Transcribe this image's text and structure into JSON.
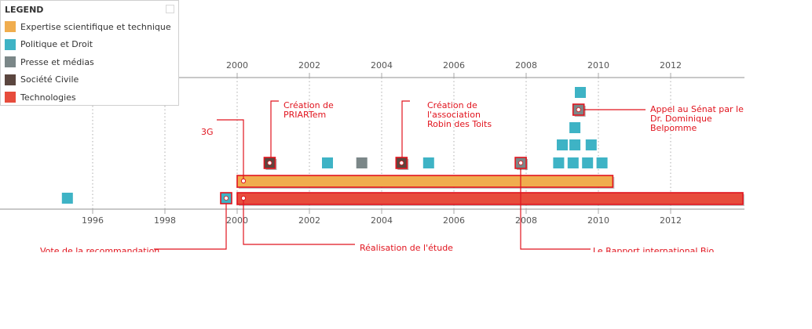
{
  "legend": {
    "title": "LEGEND",
    "items": [
      {
        "label": "Expertise scientifique et technique",
        "color": "#f0ad4e"
      },
      {
        "label": "Politique et Droit",
        "color": "#3eb3c5"
      },
      {
        "label": "Presse et médias",
        "color": "#7b8788"
      },
      {
        "label": "Société Civile",
        "color": "#5b463f"
      },
      {
        "label": "Technologies",
        "color": "#e74c3c"
      }
    ]
  },
  "colors": {
    "accent": "#e1141e",
    "axis": "#a8a8a8",
    "tick_text": "#555555",
    "expertise": "#f0ad4e",
    "politique": "#3eb3c5",
    "presse": "#7b8788",
    "societe": "#5b463f",
    "technologies": "#e74c3c"
  },
  "axes": {
    "top_ticks": [
      "2000",
      "2002",
      "2004",
      "2006",
      "2008",
      "2010",
      "2012"
    ],
    "bottom_ticks": [
      "1996",
      "1998",
      "2000",
      "2002",
      "2004",
      "2006",
      "2008",
      "2010",
      "2012"
    ],
    "range": [
      1994.15,
      2014.0
    ]
  },
  "bars": [
    {
      "category": "expertise",
      "start": 2000.0,
      "end": 2010.4
    },
    {
      "category": "technologies",
      "start": 2000.0,
      "end": 2014.0
    }
  ],
  "markers": [
    {
      "category": "politique",
      "year": 1995.3,
      "level": 0
    },
    {
      "category": "societe",
      "year": 2000.9,
      "level": 1,
      "highlighted": true
    },
    {
      "category": "politique",
      "year": 2002.5,
      "level": 1
    },
    {
      "category": "presse",
      "year": 2003.45,
      "level": 1
    },
    {
      "category": "societe",
      "year": 2004.55,
      "level": 1,
      "highlighted": true
    },
    {
      "category": "politique",
      "year": 2005.3,
      "level": 1
    },
    {
      "category": "presse",
      "year": 2007.85,
      "level": 1,
      "highlighted": true
    },
    {
      "category": "politique",
      "year": 2008.9,
      "level": 1
    },
    {
      "category": "politique",
      "year": 2009.3,
      "level": 1
    },
    {
      "category": "politique",
      "year": 2009.7,
      "level": 1
    },
    {
      "category": "politique",
      "year": 2010.1,
      "level": 1
    },
    {
      "category": "politique",
      "year": 2009.0,
      "level": 2
    },
    {
      "category": "politique",
      "year": 2009.35,
      "level": 2
    },
    {
      "category": "politique",
      "year": 2009.8,
      "level": 2
    },
    {
      "category": "politique",
      "year": 2009.35,
      "level": 3
    },
    {
      "category": "presse",
      "year": 2009.45,
      "level": 4,
      "highlighted": true
    },
    {
      "category": "politique",
      "year": 2009.5,
      "level": 5
    }
  ],
  "annotations": [
    {
      "lines": [
        "Création de",
        "PRIARTem"
      ]
    },
    {
      "lines": [
        "Création de",
        "l'association",
        "Robin des Toits"
      ]
    },
    {
      "lines": [
        "Appel au Sénat par le",
        "Dr. Dominique",
        "Belpomme"
      ]
    },
    {
      "lines": [
        "3G"
      ]
    },
    {
      "lines": [
        "Vote de la recommandation"
      ]
    },
    {
      "lines": [
        "Réalisation de l'étude"
      ]
    },
    {
      "lines": [
        "Le Rapport international Bio"
      ]
    }
  ]
}
